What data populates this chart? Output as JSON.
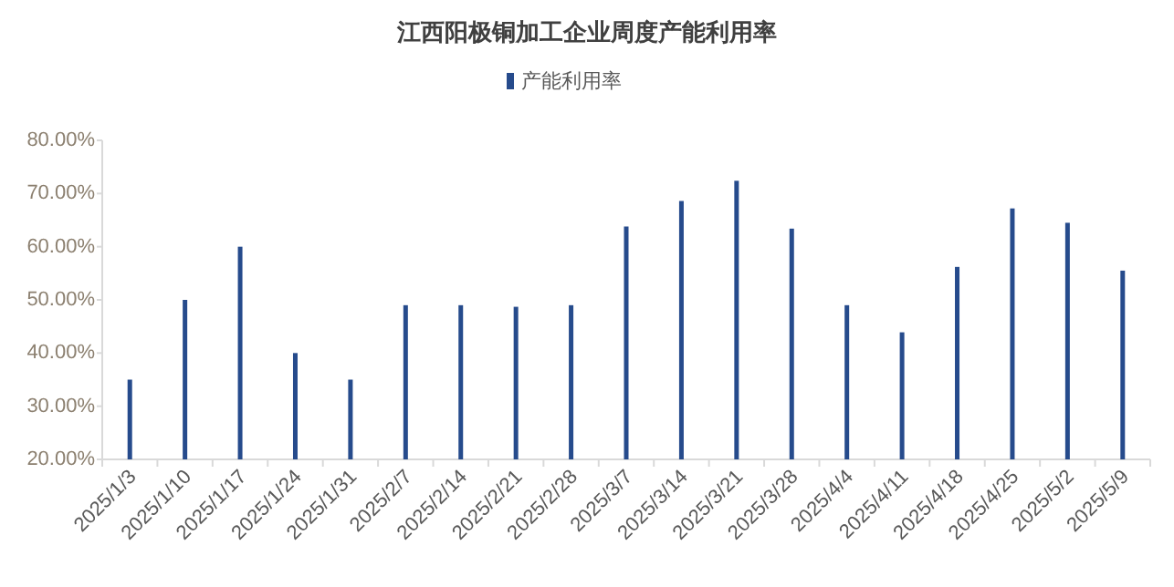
{
  "chart_data": {
    "type": "bar",
    "title": "江西阳极铜加工企业周度产能利用率",
    "categories": [
      "2025/1/3",
      "2025/1/10",
      "2025/1/17",
      "2025/1/24",
      "2025/1/31",
      "2025/2/7",
      "2025/2/14",
      "2025/2/21",
      "2025/2/28",
      "2025/3/7",
      "2025/3/14",
      "2025/3/21",
      "2025/3/28",
      "2025/4/4",
      "2025/4/11",
      "2025/4/18",
      "2025/4/25",
      "2025/5/2",
      "2025/5/9"
    ],
    "series": [
      {
        "name": "产能利用率",
        "color": "#264b8c",
        "values": [
          35,
          50,
          60,
          40,
          35,
          49,
          49,
          48.7,
          49,
          63.8,
          68.6,
          72.4,
          63.4,
          49,
          43.9,
          56.2,
          67.2,
          64.5,
          55.5
        ]
      }
    ],
    "ylim": [
      20,
      80
    ],
    "yticks": [
      {
        "value": 20,
        "label": "20.00%"
      },
      {
        "value": 30,
        "label": "30.00%"
      },
      {
        "value": 40,
        "label": "40.00%"
      },
      {
        "value": 50,
        "label": "50.00%"
      },
      {
        "value": 60,
        "label": "60.00%"
      },
      {
        "value": 70,
        "label": "70.00%"
      },
      {
        "value": 80,
        "label": "80.00%"
      }
    ],
    "legend": "top",
    "grid": false
  }
}
